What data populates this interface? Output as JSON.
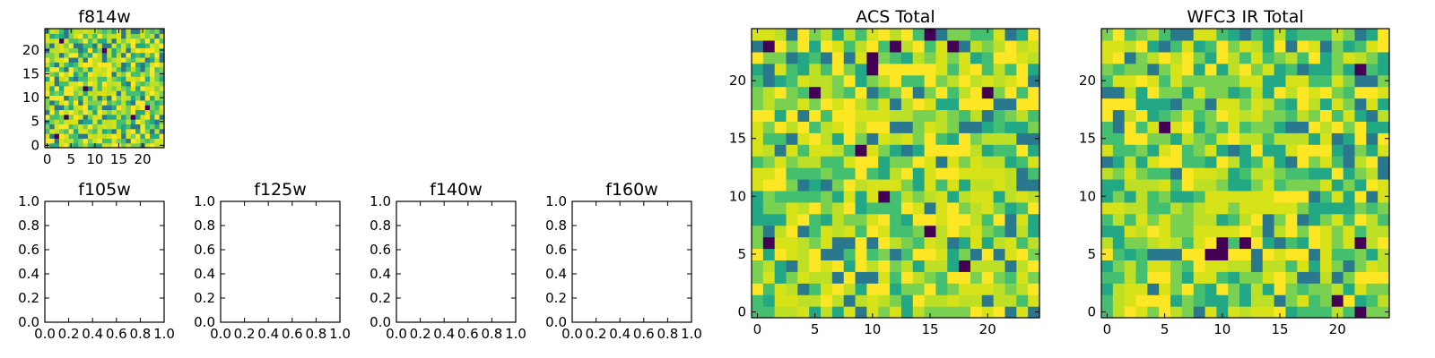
{
  "chart_data": [
    {
      "type": "heatmap",
      "title": "f814w",
      "xticks": [
        "0",
        "5",
        "10",
        "15",
        "20"
      ],
      "yticks": [
        "0",
        "5",
        "10",
        "15",
        "20"
      ],
      "xlim": [
        -0.5,
        24.5
      ],
      "ylim": [
        -0.5,
        24.5
      ],
      "grid_size": [
        25,
        25
      ],
      "colormap": "viridis",
      "seed": 814,
      "dark_cells": [
        [
          3,
          22
        ],
        [
          8,
          12
        ],
        [
          4,
          6
        ],
        [
          18,
          6
        ],
        [
          21,
          8
        ],
        [
          12,
          20
        ],
        [
          2,
          2
        ]
      ]
    },
    {
      "type": "line",
      "title": "f105w",
      "xticks": [
        "0.0",
        "0.2",
        "0.4",
        "0.6",
        "0.8",
        "1.0"
      ],
      "yticks": [
        "0.0",
        "0.2",
        "0.4",
        "0.6",
        "0.8",
        "1.0"
      ],
      "xlim": [
        0,
        1
      ],
      "ylim": [
        0,
        1
      ],
      "series": []
    },
    {
      "type": "line",
      "title": "f125w",
      "xticks": [
        "0.0",
        "0.2",
        "0.4",
        "0.6",
        "0.8",
        "1.0"
      ],
      "yticks": [
        "0.0",
        "0.2",
        "0.4",
        "0.6",
        "0.8",
        "1.0"
      ],
      "xlim": [
        0,
        1
      ],
      "ylim": [
        0,
        1
      ],
      "series": []
    },
    {
      "type": "line",
      "title": "f140w",
      "xticks": [
        "0.0",
        "0.2",
        "0.4",
        "0.6",
        "0.8",
        "1.0"
      ],
      "yticks": [
        "0.0",
        "0.2",
        "0.4",
        "0.6",
        "0.8",
        "1.0"
      ],
      "xlim": [
        0,
        1
      ],
      "ylim": [
        0,
        1
      ],
      "series": []
    },
    {
      "type": "line",
      "title": "f160w",
      "xticks": [
        "0.0",
        "0.2",
        "0.4",
        "0.6",
        "0.8",
        "1.0"
      ],
      "yticks": [
        "0.0",
        "0.2",
        "0.4",
        "0.6",
        "0.8",
        "1.0"
      ],
      "xlim": [
        0,
        1
      ],
      "ylim": [
        0,
        1
      ],
      "series": []
    },
    {
      "type": "heatmap",
      "title": "ACS Total",
      "xticks": [
        "0",
        "5",
        "10",
        "15",
        "20"
      ],
      "yticks": [
        "0",
        "5",
        "10",
        "15",
        "20"
      ],
      "xlim": [
        -0.5,
        24.5
      ],
      "ylim": [
        -0.5,
        24.5
      ],
      "grid_size": [
        25,
        25
      ],
      "colormap": "viridis",
      "seed": 77,
      "dark_cells": [
        [
          1,
          23
        ],
        [
          10,
          22
        ],
        [
          10,
          21
        ],
        [
          12,
          23
        ],
        [
          15,
          24
        ],
        [
          17,
          23
        ],
        [
          5,
          19
        ],
        [
          20,
          19
        ],
        [
          9,
          14
        ],
        [
          11,
          10
        ],
        [
          15,
          7
        ],
        [
          1,
          6
        ],
        [
          18,
          4
        ]
      ]
    },
    {
      "type": "heatmap",
      "title": "WFC3 IR Total",
      "xticks": [
        "0",
        "5",
        "10",
        "15",
        "20"
      ],
      "yticks": [
        "0",
        "5",
        "10",
        "15",
        "20"
      ],
      "xlim": [
        -0.5,
        24.5
      ],
      "ylim": [
        -0.5,
        24.5
      ],
      "grid_size": [
        25,
        25
      ],
      "colormap": "viridis",
      "seed": 3,
      "dark_cells": [
        [
          22,
          21
        ],
        [
          5,
          16
        ],
        [
          10,
          6
        ],
        [
          10,
          5
        ],
        [
          9,
          5
        ],
        [
          22,
          6
        ],
        [
          20,
          1
        ],
        [
          22,
          0
        ],
        [
          12,
          6
        ]
      ]
    }
  ]
}
